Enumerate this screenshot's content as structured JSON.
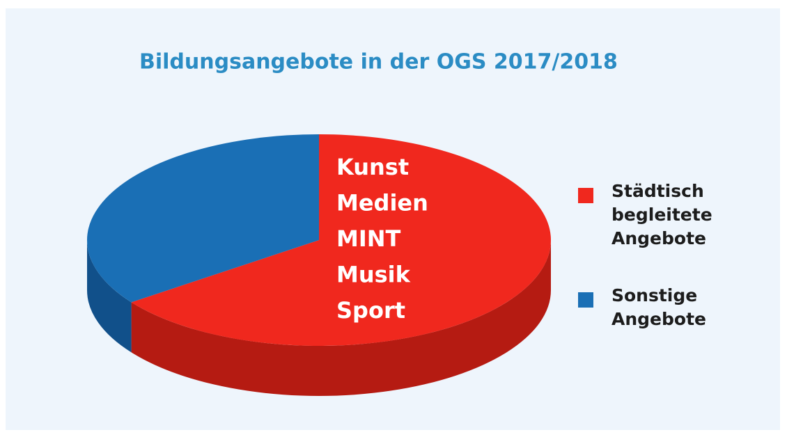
{
  "chart_data": {
    "type": "pie",
    "title": "Bildungsangebote in der OGS 2017/2018",
    "categories": [
      "Städtisch begleitete Angebote",
      "Sonstige Angebote"
    ],
    "values": [
      65,
      35
    ],
    "colors": [
      "#f0281e",
      "#1a6fb5"
    ],
    "side_colors": [
      "#b51b12",
      "#11508a"
    ],
    "annotations": [
      "Kunst",
      "Medien",
      "MINT",
      "Musik",
      "Sport"
    ],
    "legend": "right"
  }
}
